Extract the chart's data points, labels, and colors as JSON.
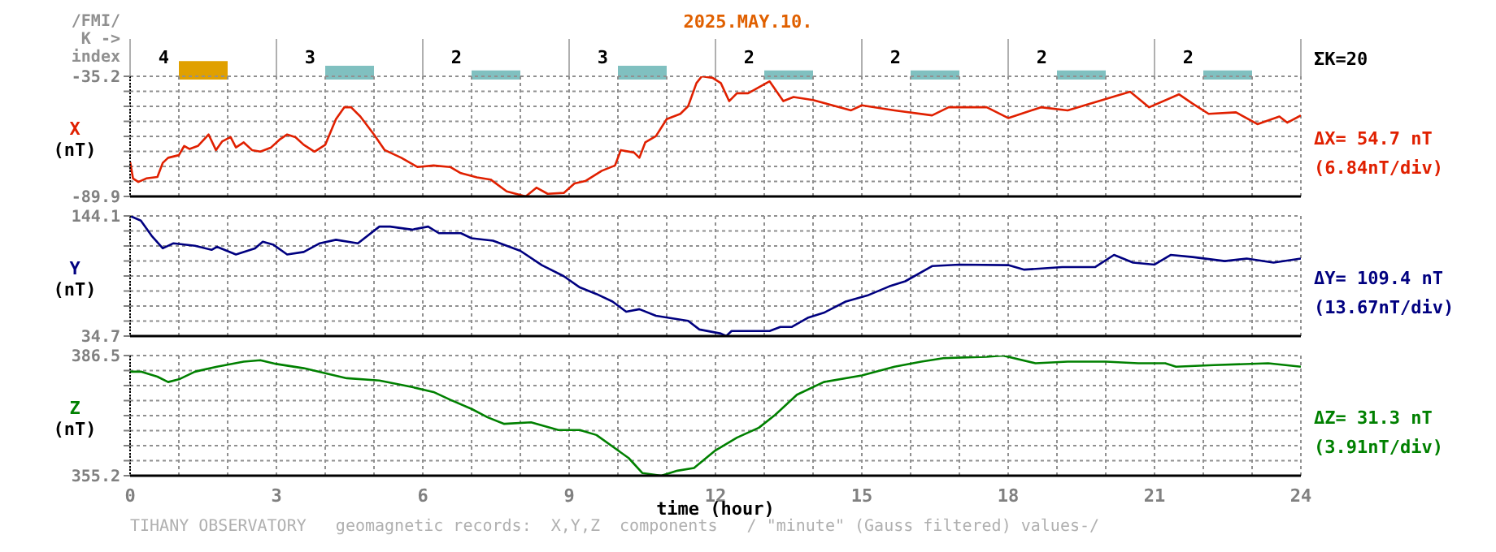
{
  "chart_data": [
    {
      "type": "bar",
      "title": "2025.MAY.10.",
      "ylabel": "/FMI/\nK ->\nindex",
      "categories": [
        null,
        null,
        null,
        null,
        null,
        null,
        null,
        null
      ],
      "values": [
        4,
        3,
        2,
        3,
        2,
        2,
        2,
        2
      ],
      "colors": [
        "#e0a000",
        "#80c0c0",
        "#80c0c0",
        "#80c0c0",
        "#80c0c0",
        "#80c0c0",
        "#80c0c0",
        "#80c0c0"
      ],
      "data_labels": true,
      "tick_labels": false,
      "annotations": [
        "ΣK=20"
      ]
    },
    {
      "type": "line",
      "ylabel": "X\n(nT)",
      "xlim": [
        0,
        24
      ],
      "ylim": [
        -89.9,
        -35.2
      ],
      "tick_labels": "y",
      "grid": true,
      "xticks": [
        0,
        {
          "value": 1,
          "label": null
        },
        {
          "value": 2,
          "label": null
        },
        3,
        {
          "value": 4,
          "label": null
        },
        {
          "value": 5,
          "label": null
        },
        6,
        {
          "value": 7,
          "label": null
        },
        {
          "value": 8,
          "label": null
        },
        9,
        {
          "value": 10,
          "label": null
        },
        {
          "value": 11,
          "label": null
        },
        12,
        {
          "value": 13,
          "label": null
        },
        {
          "value": 14,
          "label": null
        },
        15,
        {
          "value": 16,
          "label": null
        },
        {
          "value": 17,
          "label": null
        },
        18,
        {
          "value": 19,
          "label": null
        },
        {
          "value": 20,
          "label": null
        },
        21,
        {
          "value": 22,
          "label": null
        },
        {
          "value": 23,
          "label": null
        },
        24
      ],
      "yticks": [
        -89.9,
        {
          "value": -83.06,
          "label": null
        },
        {
          "value": -76.23,
          "label": null
        },
        {
          "value": -69.39,
          "label": null
        },
        {
          "value": -62.55,
          "label": null
        },
        {
          "value": -55.71,
          "label": null
        },
        {
          "value": -48.88,
          "label": null
        },
        {
          "value": -42.04,
          "label": null
        },
        -35.2
      ],
      "annotations": [
        "ΔX= 54.7 nT",
        "(6.84nT/div)"
      ],
      "series": [
        {
          "color": "#e02000",
          "x": [
            0,
            0.06,
            0.17,
            0.33,
            0.56,
            0.67,
            0.78,
            1.0,
            1.11,
            1.22,
            1.39,
            1.61,
            1.76,
            1.89,
            2.06,
            2.17,
            2.33,
            2.5,
            2.67,
            2.89,
            3.06,
            3.22,
            3.39,
            3.56,
            3.78,
            4.0,
            4.22,
            4.39,
            4.53,
            4.72,
            5.0,
            5.22,
            5.56,
            5.89,
            6.22,
            6.56,
            6.78,
            7.11,
            7.39,
            7.72,
            8.11,
            8.33,
            8.56,
            8.89,
            9.11,
            9.33,
            9.67,
            9.94,
            10.06,
            10.33,
            10.44,
            10.56,
            10.78,
            11.0,
            11.28,
            11.44,
            11.61,
            11.72,
            11.94,
            12.11,
            12.28,
            12.44,
            12.67,
            13.11,
            13.39,
            13.6,
            14.0,
            14.78,
            15.0,
            15.67,
            16.44,
            16.78,
            17.56,
            18.0,
            18.67,
            19.22,
            20.22,
            20.5,
            20.89,
            21.5,
            21.78,
            22.11,
            22.67,
            23.11,
            23.56,
            23.72,
            24.0
          ],
          "values": [
            -74.2,
            -81.7,
            -83.3,
            -81.7,
            -81.0,
            -74.6,
            -72.3,
            -71.1,
            -66.9,
            -68.3,
            -66.9,
            -61.7,
            -68.8,
            -64.8,
            -62.9,
            -67.6,
            -65.3,
            -68.8,
            -69.5,
            -67.6,
            -64.1,
            -61.7,
            -62.9,
            -66.4,
            -69.5,
            -66.4,
            -54.7,
            -49.3,
            -49.3,
            -53.5,
            -61.7,
            -68.8,
            -72.3,
            -76.5,
            -75.8,
            -76.5,
            -79.3,
            -81.2,
            -82.2,
            -87.6,
            -89.9,
            -85.9,
            -88.7,
            -88.3,
            -84.0,
            -82.9,
            -78.2,
            -75.8,
            -68.8,
            -69.9,
            -72.3,
            -65.3,
            -62.4,
            -54.7,
            -52.3,
            -48.8,
            -38.3,
            -35.2,
            -35.9,
            -38.3,
            -46.5,
            -42.9,
            -42.9,
            -37.5,
            -46.5,
            -44.6,
            -46.0,
            -50.7,
            -48.4,
            -50.7,
            -53.0,
            -49.3,
            -49.3,
            -54.2,
            -49.3,
            -50.7,
            -44.1,
            -42.2,
            -49.3,
            -43.4,
            -47.6,
            -52.3,
            -51.6,
            -57.0,
            -53.5,
            -56.3,
            -53.0
          ]
        }
      ]
    },
    {
      "type": "line",
      "ylabel": "Y\n(nT)",
      "xlim": [
        0,
        24
      ],
      "ylim": [
        34.7,
        144.1
      ],
      "tick_labels": "y",
      "grid": true,
      "xticks": [
        0,
        {
          "value": 1,
          "label": null
        },
        {
          "value": 2,
          "label": null
        },
        3,
        {
          "value": 4,
          "label": null
        },
        {
          "value": 5,
          "label": null
        },
        6,
        {
          "value": 7,
          "label": null
        },
        {
          "value": 8,
          "label": null
        },
        9,
        {
          "value": 10,
          "label": null
        },
        {
          "value": 11,
          "label": null
        },
        12,
        {
          "value": 13,
          "label": null
        },
        {
          "value": 14,
          "label": null
        },
        15,
        {
          "value": 16,
          "label": null
        },
        {
          "value": 17,
          "label": null
        },
        18,
        {
          "value": 19,
          "label": null
        },
        {
          "value": 20,
          "label": null
        },
        21,
        {
          "value": 22,
          "label": null
        },
        {
          "value": 23,
          "label": null
        },
        24
      ],
      "yticks": [
        34.7,
        {
          "value": 48.38,
          "label": null
        },
        {
          "value": 62.05,
          "label": null
        },
        {
          "value": 75.73,
          "label": null
        },
        {
          "value": 89.4,
          "label": null
        },
        {
          "value": 103.08,
          "label": null
        },
        {
          "value": 116.75,
          "label": null
        },
        {
          "value": 130.43,
          "label": null
        },
        144.1
      ],
      "annotations": [
        "ΔY= 109.4 nT",
        "(13.67nT/div)"
      ],
      "series": [
        {
          "color": "#000080",
          "x": [
            0,
            0.22,
            0.44,
            0.67,
            0.89,
            1.33,
            1.67,
            1.78,
            2.17,
            2.56,
            2.72,
            2.94,
            3.22,
            3.56,
            3.89,
            4.22,
            4.67,
            5.11,
            5.33,
            5.78,
            6.11,
            6.33,
            6.78,
            7.0,
            7.44,
            8.0,
            8.44,
            8.89,
            9.22,
            9.56,
            9.89,
            10.17,
            10.44,
            10.78,
            11.44,
            11.67,
            12.11,
            12.22,
            12.33,
            13.11,
            13.33,
            13.56,
            13.89,
            14.22,
            14.67,
            15.11,
            15.56,
            15.89,
            16.44,
            17.0,
            18.0,
            18.33,
            19.11,
            19.78,
            20.17,
            20.56,
            21.0,
            21.33,
            21.78,
            22.44,
            22.89,
            23.44,
            24.0
          ],
          "values": [
            144.1,
            139.9,
            126.1,
            114.6,
            119.2,
            116.9,
            113.2,
            116.0,
            109.0,
            114.6,
            120.6,
            117.8,
            109.0,
            111.3,
            119.2,
            122.4,
            119.2,
            134.4,
            134.4,
            131.6,
            134.4,
            128.4,
            128.4,
            123.8,
            121.5,
            112.3,
            99.3,
            89.2,
            79.0,
            73.0,
            66.1,
            56.9,
            59.2,
            53.2,
            48.5,
            40.7,
            37.0,
            34.7,
            39.3,
            39.3,
            43.0,
            43.0,
            51.3,
            55.9,
            66.1,
            71.6,
            79.9,
            84.6,
            98.4,
            99.8,
            99.3,
            95.2,
            97.5,
            97.5,
            108.6,
            101.6,
            99.8,
            108.6,
            106.7,
            103.0,
            105.3,
            101.6,
            105.3
          ]
        }
      ]
    },
    {
      "type": "line",
      "ylabel": "Z\n(nT)",
      "xlabel": "time (hour)",
      "xlim": [
        0,
        24
      ],
      "ylim": [
        355.2,
        386.5
      ],
      "grid": true,
      "xticks": [
        0,
        {
          "value": 1,
          "label": null
        },
        {
          "value": 2,
          "label": null
        },
        3,
        {
          "value": 4,
          "label": null
        },
        {
          "value": 5,
          "label": null
        },
        6,
        {
          "value": 7,
          "label": null
        },
        {
          "value": 8,
          "label": null
        },
        9,
        {
          "value": 10,
          "label": null
        },
        {
          "value": 11,
          "label": null
        },
        12,
        {
          "value": 13,
          "label": null
        },
        {
          "value": 14,
          "label": null
        },
        15,
        {
          "value": 16,
          "label": null
        },
        {
          "value": 17,
          "label": null
        },
        18,
        {
          "value": 19,
          "label": null
        },
        {
          "value": 20,
          "label": null
        },
        21,
        {
          "value": 22,
          "label": null
        },
        {
          "value": 23,
          "label": null
        },
        24
      ],
      "yticks": [
        355.2,
        {
          "value": 359.11,
          "label": null
        },
        {
          "value": 363.03,
          "label": null
        },
        {
          "value": 366.94,
          "label": null
        },
        {
          "value": 370.85,
          "label": null
        },
        {
          "value": 374.76,
          "label": null
        },
        {
          "value": 378.68,
          "label": null
        },
        {
          "value": 382.59,
          "label": null
        },
        386.5
      ],
      "annotations": [
        "ΔZ= 31.3 nT",
        "(3.91nT/div)",
        "TIHANY OBSERVATORY   geomagnetic records:  X,Y,Z  components   / \"minute\" (Gauss filtered) values-/"
      ],
      "series": [
        {
          "color": "#008000",
          "x": [
            0,
            0.22,
            0.56,
            0.78,
            1.0,
            1.33,
            1.78,
            2.33,
            2.67,
            3.0,
            3.56,
            4.44,
            5.11,
            5.78,
            6.22,
            6.56,
            7.0,
            7.33,
            7.67,
            8.22,
            8.78,
            9.22,
            9.56,
            10.0,
            10.22,
            10.5,
            10.89,
            11.22,
            11.56,
            12.0,
            12.44,
            12.89,
            13.22,
            13.67,
            14.22,
            15.0,
            15.67,
            16.22,
            16.67,
            17.56,
            17.89,
            18.56,
            19.22,
            20.0,
            20.67,
            21.22,
            21.44,
            22.22,
            23.33,
            24.0
          ],
          "values": [
            382.3,
            382.3,
            381.0,
            379.6,
            380.3,
            382.3,
            383.6,
            384.9,
            385.3,
            384.3,
            383.2,
            380.6,
            380.0,
            378.3,
            377.0,
            375.0,
            372.6,
            370.4,
            368.7,
            369.1,
            367.1,
            367.1,
            365.8,
            361.8,
            359.8,
            355.9,
            355.2,
            356.5,
            357.2,
            361.8,
            365.1,
            367.7,
            371.0,
            376.3,
            379.6,
            381.3,
            383.6,
            384.9,
            385.8,
            386.2,
            386.5,
            384.5,
            384.9,
            384.9,
            384.5,
            384.5,
            383.6,
            384.0,
            384.5,
            383.6
          ]
        }
      ]
    }
  ]
}
